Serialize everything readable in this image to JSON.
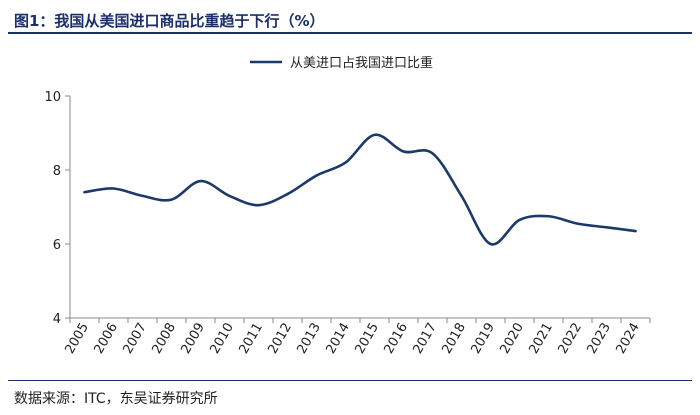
{
  "figure": {
    "title": "图1：我国从美国进口商品比重趋于下行（%）",
    "source": "数据来源：ITC，东吴证券研究所"
  },
  "colors": {
    "line": "#1b3a6b",
    "axis": "#8a8a8a",
    "title": "#1b2f6b"
  },
  "chart_data": {
    "type": "line",
    "title": "",
    "xlabel": "",
    "ylabel": "",
    "categories": [
      "2005",
      "2006",
      "2007",
      "2008",
      "2009",
      "2010",
      "2011",
      "2012",
      "2013",
      "2014",
      "2015",
      "2016",
      "2017",
      "2018",
      "2019",
      "2020",
      "2021",
      "2022",
      "2023",
      "2024"
    ],
    "series": [
      {
        "name": "从美进口占我国进口比重",
        "values": [
          7.4,
          7.5,
          7.3,
          7.2,
          7.7,
          7.3,
          7.05,
          7.35,
          7.85,
          8.2,
          8.95,
          8.5,
          8.45,
          7.3,
          6.0,
          6.65,
          6.75,
          6.55,
          6.45,
          6.35
        ]
      }
    ],
    "ylim": [
      4,
      10
    ],
    "yticks": [
      4,
      6,
      8,
      10
    ],
    "grid": false,
    "legend_position": "top-center",
    "smooth": true
  }
}
